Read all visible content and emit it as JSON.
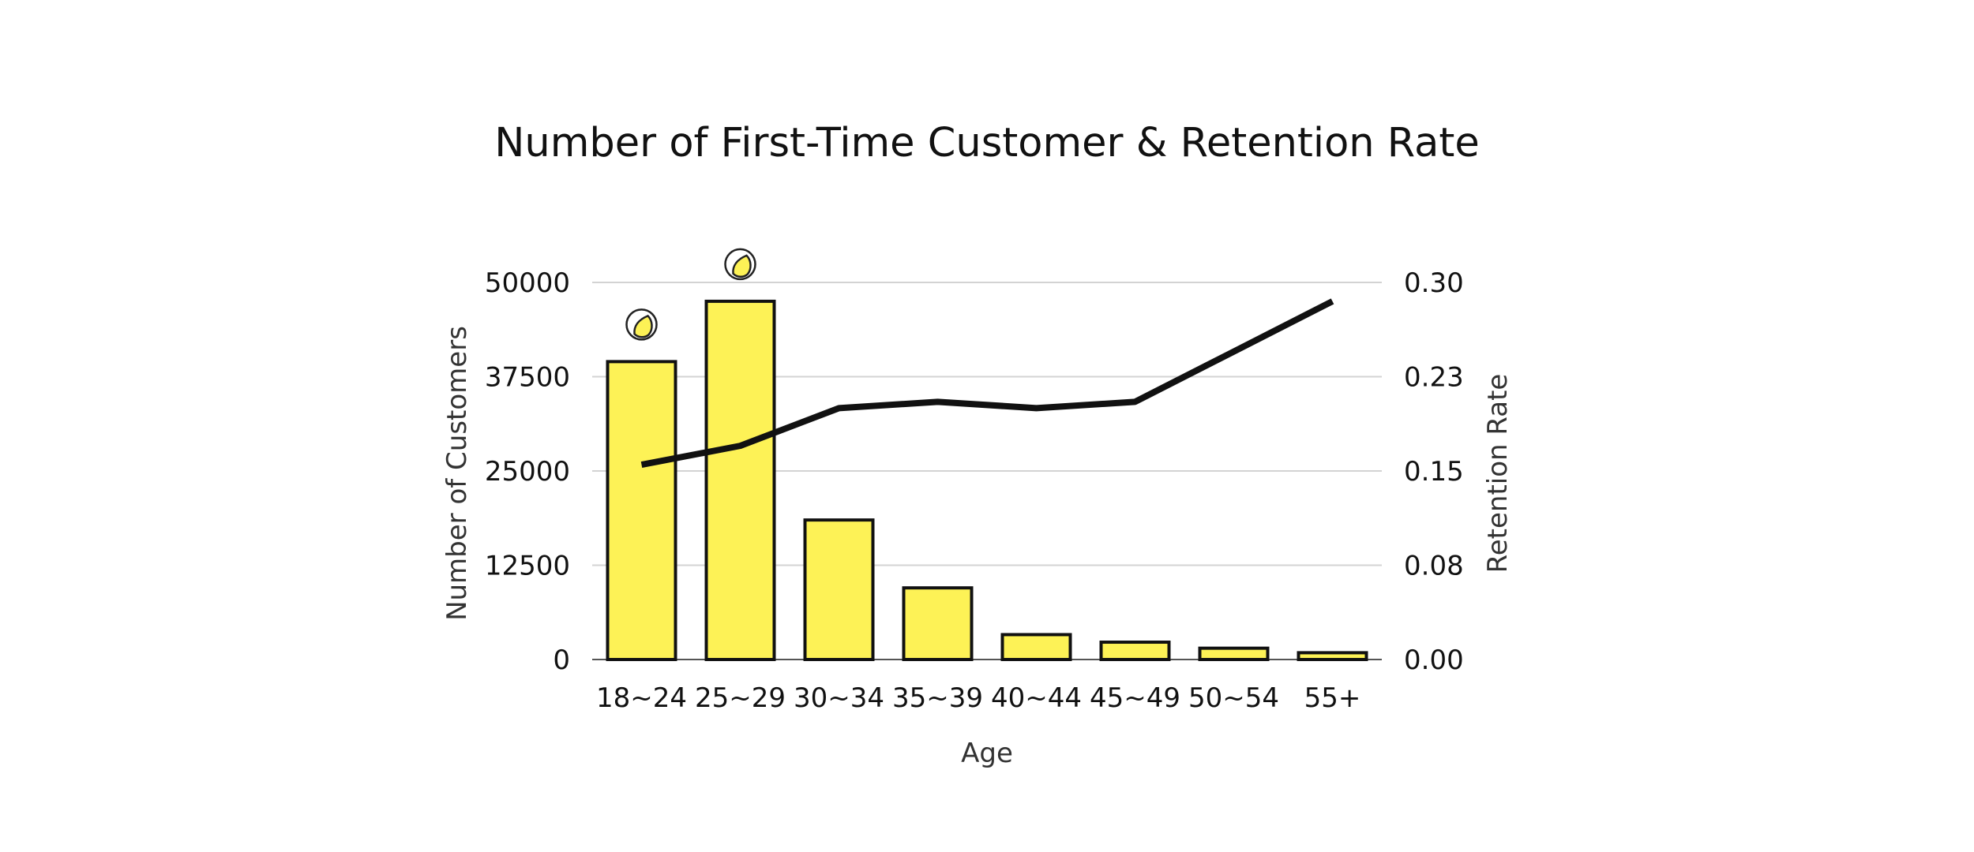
{
  "chart_data": {
    "type": "bar",
    "title": "Number of First-Time Customer & Retention Rate",
    "xlabel": "Age",
    "ylabel": "Number of Customers",
    "y2label": "Retention Rate",
    "categories": [
      "18~24",
      "25~29",
      "30~34",
      "35~39",
      "40~44",
      "45~49",
      "50~54",
      "55+"
    ],
    "series": [
      {
        "name": "Number of Customers",
        "type": "bar",
        "axis": "left",
        "color": "#FDF256",
        "values": [
          39500,
          47500,
          18500,
          9500,
          3300,
          2300,
          1500,
          900
        ]
      },
      {
        "name": "Retention Rate",
        "type": "line",
        "axis": "right",
        "color": "#111111",
        "values": [
          0.155,
          0.17,
          0.2,
          0.205,
          0.2,
          0.205,
          0.245,
          0.285
        ]
      }
    ],
    "ylim": [
      0,
      50000
    ],
    "y2lim": [
      0,
      0.3
    ],
    "yticks": [
      "0",
      "12500",
      "25000",
      "37500",
      "50000"
    ],
    "y2ticks": [
      "0.00",
      "0.08",
      "0.15",
      "0.23",
      "0.30"
    ],
    "grid": true,
    "legend": "none",
    "highlight_icons": [
      "18~24",
      "25~29"
    ]
  }
}
